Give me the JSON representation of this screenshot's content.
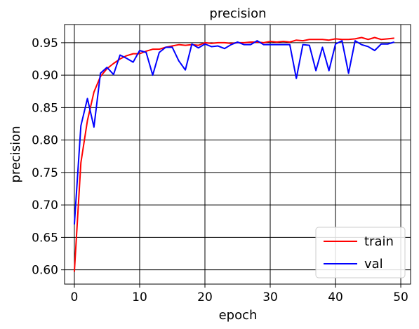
{
  "chart_data": {
    "type": "line",
    "title": "precision",
    "xlabel": "epoch",
    "ylabel": "precision",
    "xlim": [
      -1.5,
      51.5
    ],
    "ylim": [
      0.578,
      0.978
    ],
    "xticks": [
      0,
      10,
      20,
      30,
      40,
      50
    ],
    "xtick_labels": [
      "0",
      "10",
      "20",
      "30",
      "40",
      "50"
    ],
    "yticks": [
      0.6,
      0.65,
      0.7,
      0.75,
      0.8,
      0.85,
      0.9,
      0.95
    ],
    "ytick_labels": [
      "0.60",
      "0.65",
      "0.70",
      "0.75",
      "0.80",
      "0.85",
      "0.90",
      "0.95"
    ],
    "grid": true,
    "legend_position": "lower-right",
    "series": [
      {
        "name": "train",
        "color": "#ff0000",
        "x": [
          0,
          1,
          2,
          3,
          4,
          5,
          6,
          7,
          8,
          9,
          10,
          11,
          12,
          13,
          14,
          15,
          16,
          17,
          18,
          19,
          20,
          21,
          22,
          23,
          24,
          25,
          26,
          27,
          28,
          29,
          30,
          31,
          32,
          33,
          34,
          35,
          36,
          37,
          38,
          39,
          40,
          41,
          42,
          43,
          44,
          45,
          46,
          47,
          48,
          49
        ],
        "values": [
          0.597,
          0.765,
          0.83,
          0.874,
          0.898,
          0.91,
          0.918,
          0.925,
          0.93,
          0.933,
          0.933,
          0.937,
          0.94,
          0.94,
          0.943,
          0.945,
          0.947,
          0.946,
          0.947,
          0.946,
          0.95,
          0.949,
          0.95,
          0.95,
          0.949,
          0.95,
          0.95,
          0.951,
          0.951,
          0.95,
          0.952,
          0.951,
          0.952,
          0.951,
          0.954,
          0.953,
          0.955,
          0.955,
          0.955,
          0.954,
          0.956,
          0.955,
          0.955,
          0.956,
          0.958,
          0.955,
          0.958,
          0.955,
          0.956,
          0.957
        ]
      },
      {
        "name": "val",
        "color": "#0000ff",
        "x": [
          0,
          1,
          2,
          3,
          4,
          5,
          6,
          7,
          8,
          9,
          10,
          11,
          12,
          13,
          14,
          15,
          16,
          17,
          18,
          19,
          20,
          21,
          22,
          23,
          24,
          25,
          26,
          27,
          28,
          29,
          30,
          31,
          32,
          33,
          34,
          35,
          36,
          37,
          38,
          39,
          40,
          41,
          42,
          43,
          44,
          45,
          46,
          47,
          48,
          49
        ],
        "values": [
          0.67,
          0.822,
          0.864,
          0.82,
          0.903,
          0.912,
          0.901,
          0.931,
          0.926,
          0.92,
          0.938,
          0.935,
          0.9,
          0.935,
          0.943,
          0.943,
          0.922,
          0.908,
          0.948,
          0.942,
          0.948,
          0.944,
          0.945,
          0.941,
          0.947,
          0.951,
          0.947,
          0.947,
          0.953,
          0.947,
          0.947,
          0.947,
          0.947,
          0.947,
          0.895,
          0.947,
          0.946,
          0.907,
          0.943,
          0.907,
          0.948,
          0.953,
          0.903,
          0.953,
          0.947,
          0.944,
          0.938,
          0.948,
          0.948,
          0.951
        ]
      }
    ]
  }
}
